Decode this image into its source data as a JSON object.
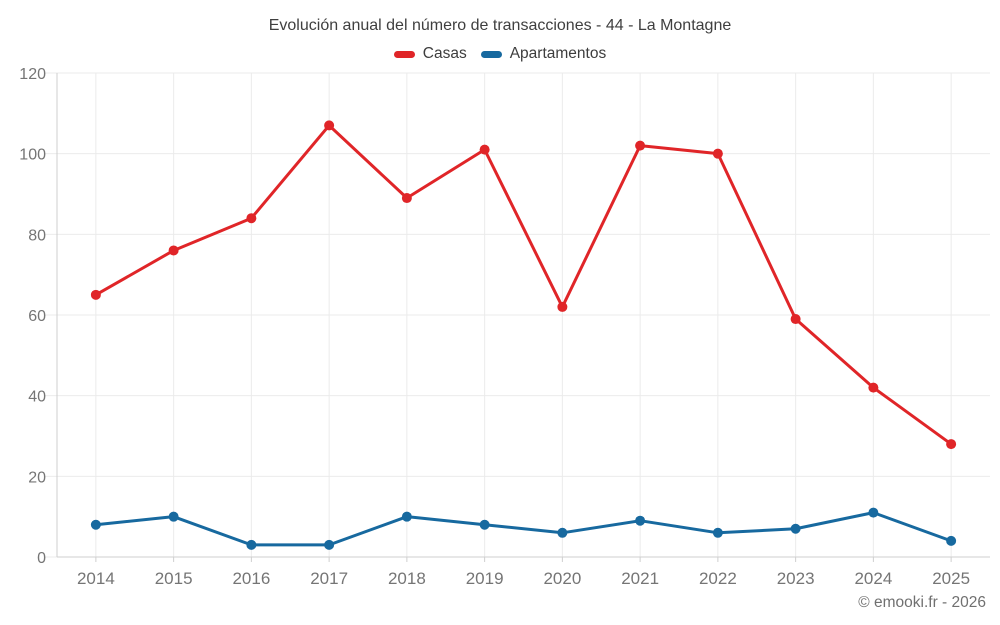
{
  "header": {
    "title": "Evolución anual del número de transacciones - 44 - La Montagne"
  },
  "chart_data": {
    "type": "line",
    "title": "Evolución anual del número de transacciones - 44 - La Montagne",
    "categories": [
      "2014",
      "2015",
      "2016",
      "2017",
      "2018",
      "2019",
      "2020",
      "2021",
      "2022",
      "2023",
      "2024",
      "2025"
    ],
    "series": [
      {
        "name": "Casas",
        "color": "#e02528",
        "values": [
          65,
          76,
          84,
          107,
          89,
          101,
          62,
          102,
          100,
          59,
          42,
          28
        ]
      },
      {
        "name": "Apartamentos",
        "color": "#17699f",
        "values": [
          8,
          10,
          3,
          3,
          10,
          8,
          6,
          9,
          6,
          7,
          11,
          4
        ]
      }
    ],
    "xlabel": "",
    "ylabel": "",
    "ylim": [
      0,
      120
    ],
    "ytick_step": 20,
    "grid": true,
    "legend_position": "top"
  },
  "footer": {
    "credit": "© emooki.fr - 2026"
  },
  "colors": {
    "axis_line": "#cfcfcf",
    "grid_line": "#ebebeb",
    "tick_label": "#757575",
    "title_text": "#3f3f3f"
  }
}
